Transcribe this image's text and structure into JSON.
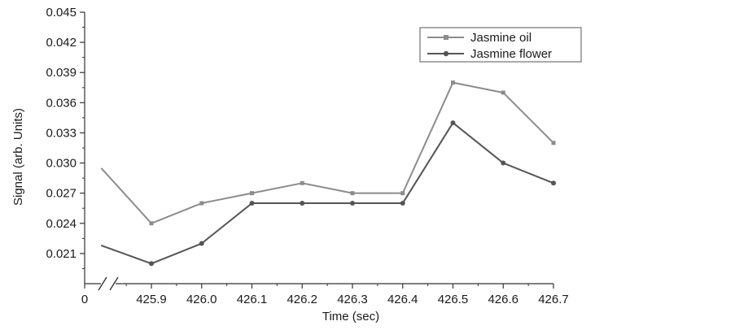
{
  "chart_data": {
    "type": "line",
    "title": "",
    "xlabel": "Time (sec)",
    "ylabel": "Signal (arb. Units)",
    "x_ticks": [
      "0",
      "425.9",
      "426.0",
      "426.1",
      "426.2",
      "426.3",
      "426.4",
      "426.5",
      "426.6",
      "426.7"
    ],
    "y_ticks": [
      "0.021",
      "0.024",
      "0.027",
      "0.030",
      "0.033",
      "0.036",
      "0.039",
      "0.042",
      "0.045"
    ],
    "ylim": [
      0.018,
      0.045
    ],
    "axis_break": true,
    "x": [
      425.8,
      425.9,
      426.0,
      426.1,
      426.2,
      426.3,
      426.4,
      426.5,
      426.6,
      426.7
    ],
    "series": [
      {
        "name": "Jasmine oil",
        "marker": "square",
        "color": "#8c8c8c",
        "values": [
          0.0295,
          0.024,
          0.026,
          0.027,
          0.028,
          0.027,
          0.027,
          0.038,
          0.037,
          0.032
        ]
      },
      {
        "name": "Jasmine flower",
        "marker": "circle",
        "color": "#555555",
        "values": [
          0.0218,
          0.02,
          0.022,
          0.026,
          0.026,
          0.026,
          0.026,
          0.034,
          0.03,
          0.028
        ]
      }
    ],
    "legend_position": "top-right",
    "grid": false
  }
}
